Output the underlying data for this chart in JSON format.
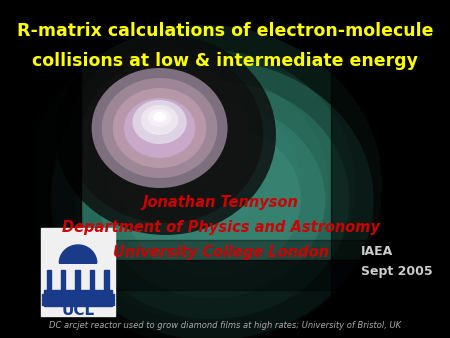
{
  "title_line1": "R-matrix calculations of electron-molecule",
  "title_line2": "collisions at low & intermediate energy",
  "title_color": "#FFFF00",
  "title_fontsize": 12.5,
  "author": "Jonathan Tennyson",
  "dept": "Department of Physics and Astronomy",
  "university": "University College London",
  "author_color": "#CC0000",
  "author_fontsize": 10.5,
  "org_right1": "IAEA",
  "org_right2": "Sept 2005",
  "org_color": "#CCCCCC",
  "org_fontsize": 9,
  "caption": "DC arcjet reactor used to grow diamond films at high rates; University of Bristol, UK",
  "caption_color": "#AAAAAA",
  "caption_fontsize": 6.0,
  "background_color": "#000000",
  "ucl_logo_color": "#1a3a7a",
  "ucl_text_color": "#ffffff"
}
